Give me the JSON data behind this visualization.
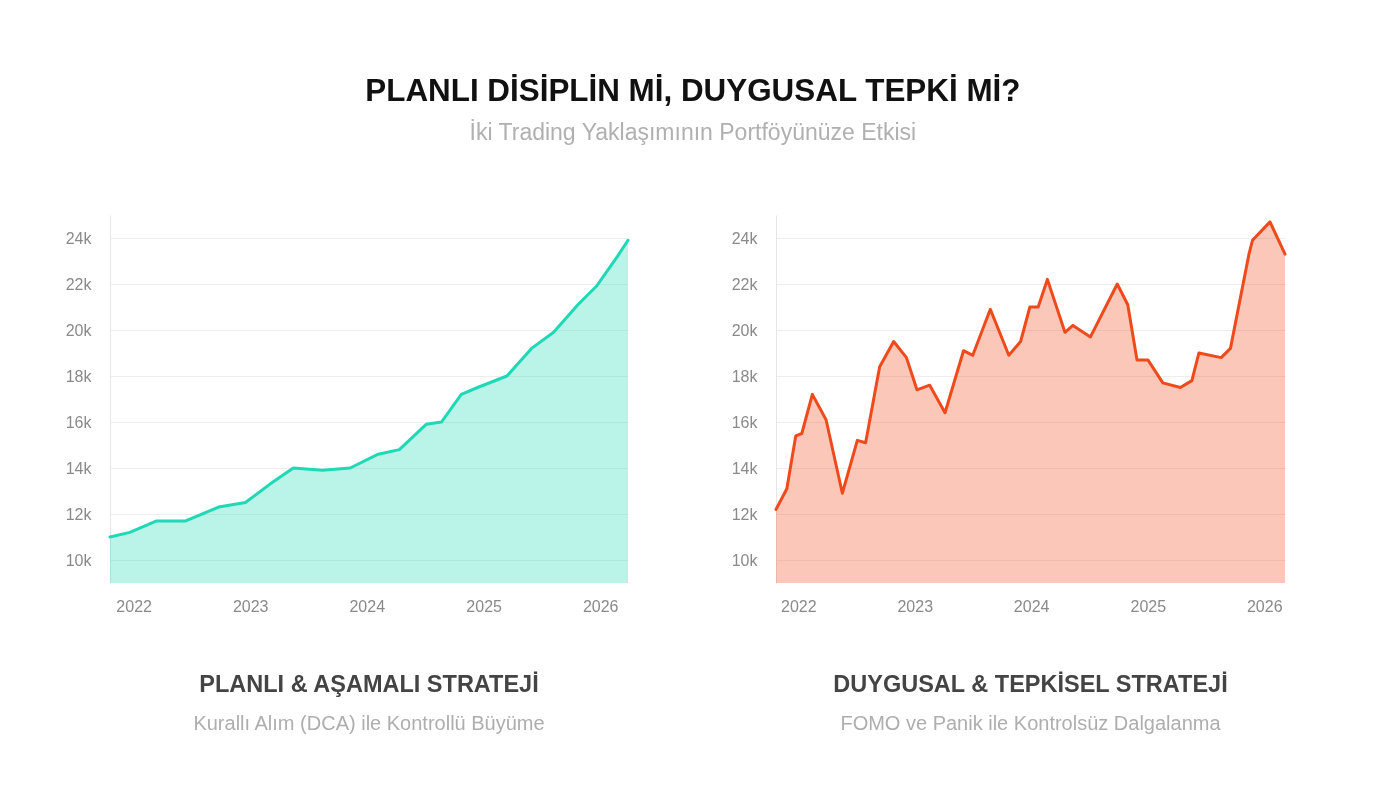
{
  "chart_data": [
    {
      "type": "other",
      "title": "PLANLI DİSİPLİN Mİ, DUYGUSAL TEPKİ Mİ?",
      "subtitle": "İki Trading Yaklaşımının Portföyünüze Etkisi"
    },
    {
      "type": "area",
      "title": "PLANLI & AŞAMALI STRATEJİ",
      "subtitle": "Kurallı Alım (DCA) ile Kontrollü Büyüme",
      "x": [
        "2021-10-19",
        "2021-12-20",
        "2022-03-14",
        "2022-06-13",
        "2022-09-24",
        "2022-12-17",
        "2023-03-04",
        "2023-05-16",
        "2023-08-15",
        "2023-11-10",
        "2024-02-06",
        "2024-04-12",
        "2024-07-05",
        "2024-08-22",
        "2024-10-23",
        "2024-12-13",
        "2025-03-15",
        "2025-05-31",
        "2025-08-08",
        "2025-10-23",
        "2025-12-20",
        "2026-02-24",
        "2026-03-29"
      ],
      "values": [
        11000,
        11200,
        11700,
        11700,
        12300,
        12500,
        13300,
        14000,
        13900,
        14000,
        14600,
        14800,
        15900,
        16000,
        17200,
        17500,
        18000,
        19200,
        19900,
        21100,
        21900,
        23200,
        23900
      ],
      "color": "#1fd8b6",
      "xlim": [
        "2021-10-19",
        "2026-03-29"
      ],
      "xticks": [
        "2022",
        "2023",
        "2024",
        "2025",
        "2026"
      ],
      "ylim": [
        9000,
        25000
      ],
      "yticks": [
        {
          "value": 10000,
          "label": "10k"
        },
        {
          "value": 12000,
          "label": "12k"
        },
        {
          "value": 14000,
          "label": "14k"
        },
        {
          "value": 16000,
          "label": "16k"
        },
        {
          "value": 18000,
          "label": "18k"
        },
        {
          "value": 20000,
          "label": "20k"
        },
        {
          "value": 22000,
          "label": "22k"
        },
        {
          "value": 24000,
          "label": "24k"
        }
      ],
      "grid": "y"
    },
    {
      "type": "area",
      "title": "DUYGUSAL & TEPKİSEL STRATEJİ",
      "subtitle": "FOMO ve Panik ile Kontrolsüz Dalgalanma",
      "x": [
        "2021-10-23",
        "2021-11-26",
        "2021-12-24",
        "2022-01-12",
        "2022-02-14",
        "2022-03-29",
        "2022-05-19",
        "2022-07-05",
        "2022-07-31",
        "2022-09-13",
        "2022-10-27",
        "2022-12-06",
        "2023-01-08",
        "2023-02-17",
        "2023-04-06",
        "2023-06-03",
        "2023-07-02",
        "2023-08-26",
        "2023-10-23",
        "2023-11-29",
        "2023-12-28",
        "2024-01-23",
        "2024-02-21",
        "2024-04-16",
        "2024-05-11",
        "2024-07-05",
        "2024-09-27",
        "2024-10-30",
        "2024-11-28",
        "2025-01-01",
        "2025-02-17",
        "2025-04-13",
        "2025-05-19",
        "2025-06-10",
        "2025-08-19",
        "2025-09-17",
        "2025-11-14",
        "2025-11-25",
        "2026-01-19",
        "2026-03-07"
      ],
      "values": [
        12200,
        13100,
        15400,
        15500,
        17200,
        16100,
        12900,
        15200,
        15100,
        18400,
        19500,
        18800,
        17400,
        17600,
        16400,
        19100,
        18900,
        20900,
        18900,
        19500,
        21000,
        21000,
        22200,
        19900,
        20200,
        19700,
        22000,
        21100,
        18700,
        18700,
        17700,
        17500,
        17800,
        19000,
        18800,
        19200,
        23300,
        23900,
        24700,
        23300
      ],
      "color": "#ef4a1c",
      "xlim": [
        "2021-10-23",
        "2026-03-07"
      ],
      "xticks": [
        "2022",
        "2023",
        "2024",
        "2025",
        "2026"
      ],
      "ylim": [
        9000,
        25000
      ],
      "yticks": [
        {
          "value": 10000,
          "label": "10k"
        },
        {
          "value": 12000,
          "label": "12k"
        },
        {
          "value": 14000,
          "label": "14k"
        },
        {
          "value": 16000,
          "label": "16k"
        },
        {
          "value": 18000,
          "label": "18k"
        },
        {
          "value": 20000,
          "label": "20k"
        },
        {
          "value": 22000,
          "label": "22k"
        },
        {
          "value": 24000,
          "label": "24k"
        }
      ],
      "grid": "y"
    }
  ]
}
